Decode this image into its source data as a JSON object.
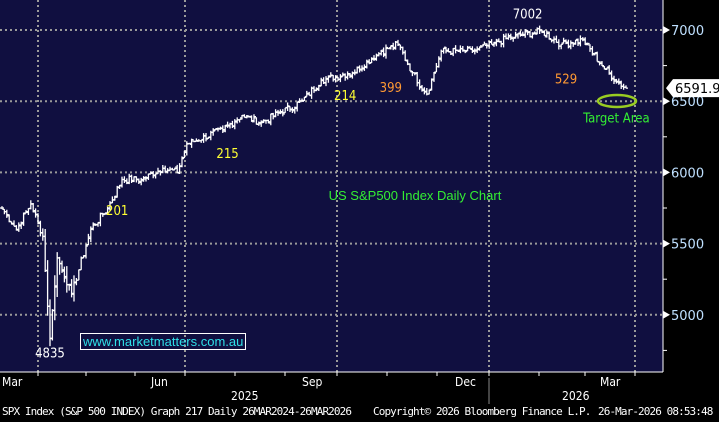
{
  "chart_data": {
    "type": "ohlc",
    "title": "US S&P500 Index Daily Chart",
    "ticker": "SPX Index",
    "yticks": [
      5000,
      5500,
      6000,
      6500,
      7000
    ],
    "ylim": [
      4600,
      7200
    ],
    "xticks": [
      {
        "label": "Mar",
        "day": 4
      },
      {
        "label": "Jun",
        "day": 67
      },
      {
        "label": "Sep",
        "day": 130
      },
      {
        "label": "Dec",
        "day": 195
      },
      {
        "label": "Mar",
        "day": 255
      }
    ],
    "years": [
      "2025",
      "2026"
    ],
    "last_price": "6591.90",
    "anchors_day_close": [
      [
        0,
        5750
      ],
      [
        6,
        5600
      ],
      [
        12,
        5780
      ],
      [
        17,
        5550
      ],
      [
        20,
        4835
      ],
      [
        23,
        5400
      ],
      [
        29,
        5150
      ],
      [
        37,
        5600
      ],
      [
        44,
        5750
      ],
      [
        50,
        5950
      ],
      [
        58,
        5950
      ],
      [
        67,
        6030
      ],
      [
        73,
        6000
      ],
      [
        77,
        6200
      ],
      [
        92,
        6300
      ],
      [
        100,
        6400
      ],
      [
        108,
        6350
      ],
      [
        125,
        6500
      ],
      [
        133,
        6650
      ],
      [
        146,
        6700
      ],
      [
        158,
        6850
      ],
      [
        165,
        6900
      ],
      [
        171,
        6700
      ],
      [
        177,
        6550
      ],
      [
        183,
        6850
      ],
      [
        196,
        6850
      ],
      [
        204,
        6900
      ],
      [
        212,
        6950
      ],
      [
        225,
        6990
      ],
      [
        233,
        6900
      ],
      [
        242,
        6930
      ],
      [
        250,
        6750
      ],
      [
        256,
        6640
      ],
      [
        260,
        6592
      ]
    ],
    "annotations": [
      {
        "text": "4835",
        "day": 20,
        "price": 4700,
        "color": "#ffffff"
      },
      {
        "text": "201",
        "day": 48,
        "price": 5700,
        "color": "#ffff33"
      },
      {
        "text": "215",
        "day": 94,
        "price": 6100,
        "color": "#ffff33"
      },
      {
        "text": "214",
        "day": 143,
        "price": 6510,
        "color": "#ffff33"
      },
      {
        "text": "399",
        "day": 162,
        "price": 6565,
        "color": "#ff9933"
      },
      {
        "text": "7002",
        "day": 219,
        "price": 7080,
        "color": "#ffffff"
      },
      {
        "text": "529",
        "day": 235,
        "price": 6625,
        "color": "#ff9933"
      },
      {
        "text": "Target Area",
        "day": 256,
        "price": 6350,
        "color": "#33ee33"
      }
    ]
  },
  "watermark": "www.marketmatters.com.au",
  "footer": {
    "left": "SPX Index (S&P 500 INDEX) Graph 217 Daily 26MAR2024-26MAR2026",
    "copyright": "Copyright© 2026 Bloomberg Finance L.P.",
    "timestamp": "26-Mar-2026 08:53:48"
  },
  "colors": {
    "background": "#100f40",
    "grid": "#9a9a9a",
    "bars": "#ffffff",
    "title": "#33ee33",
    "target": "#99cc22"
  }
}
